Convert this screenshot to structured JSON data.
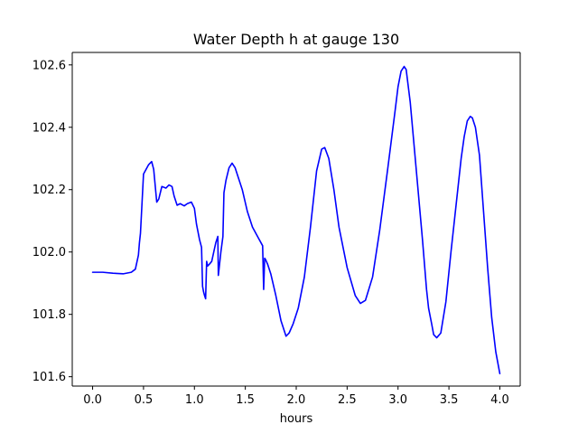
{
  "chart_data": {
    "type": "line",
    "title": "Water Depth h at gauge 130",
    "xlabel": "hours",
    "ylabel": "",
    "xlim": [
      -0.2,
      4.2
    ],
    "ylim": [
      101.57,
      102.64
    ],
    "xticks": [
      0.0,
      0.5,
      1.0,
      1.5,
      2.0,
      2.5,
      3.0,
      3.5,
      4.0
    ],
    "xtick_labels": [
      "0.0",
      "0.5",
      "1.0",
      "1.5",
      "2.0",
      "2.5",
      "3.0",
      "3.5",
      "4.0"
    ],
    "yticks": [
      101.6,
      101.8,
      102.0,
      102.2,
      102.4,
      102.6
    ],
    "ytick_labels": [
      "101.6",
      "101.8",
      "102.0",
      "102.2",
      "102.4",
      "102.6"
    ],
    "grid": false,
    "series": [
      {
        "color": "#0000ff",
        "x": [
          0.0,
          0.1,
          0.2,
          0.3,
          0.38,
          0.42,
          0.45,
          0.46,
          0.47,
          0.5,
          0.55,
          0.58,
          0.6,
          0.63,
          0.65,
          0.68,
          0.72,
          0.75,
          0.78,
          0.8,
          0.83,
          0.86,
          0.9,
          0.93,
          0.97,
          1.0,
          1.02,
          1.05,
          1.07,
          1.08,
          1.09,
          1.1,
          1.11,
          1.12,
          1.13,
          1.15,
          1.17,
          1.19,
          1.21,
          1.23,
          1.235,
          1.24,
          1.26,
          1.28,
          1.29,
          1.31,
          1.34,
          1.37,
          1.4,
          1.43,
          1.47,
          1.52,
          1.57,
          1.62,
          1.67,
          1.68,
          1.69,
          1.7,
          1.72,
          1.75,
          1.8,
          1.85,
          1.9,
          1.93,
          1.97,
          2.02,
          2.08,
          2.14,
          2.2,
          2.25,
          2.28,
          2.32,
          2.37,
          2.42,
          2.5,
          2.58,
          2.63,
          2.68,
          2.75,
          2.82,
          2.9,
          2.97,
          3.0,
          3.03,
          3.06,
          3.08,
          3.12,
          3.18,
          3.24,
          3.28,
          3.3,
          3.33,
          3.35,
          3.38,
          3.42,
          3.47,
          3.52,
          3.57,
          3.62,
          3.65,
          3.68,
          3.71,
          3.73,
          3.76,
          3.8,
          3.84,
          3.88,
          3.92,
          3.96,
          4.0
        ],
        "y": [
          101.935,
          101.935,
          101.932,
          101.93,
          101.935,
          101.945,
          101.99,
          102.03,
          102.06,
          102.25,
          102.28,
          102.29,
          102.265,
          102.16,
          102.17,
          102.21,
          102.205,
          102.215,
          102.21,
          102.18,
          102.15,
          102.155,
          102.148,
          102.155,
          102.16,
          102.14,
          102.09,
          102.04,
          102.015,
          101.89,
          101.872,
          101.86,
          101.85,
          101.97,
          101.955,
          101.962,
          101.97,
          102.0,
          102.03,
          102.05,
          101.925,
          101.94,
          102.0,
          102.05,
          102.19,
          102.23,
          102.27,
          102.285,
          102.27,
          102.24,
          102.2,
          102.13,
          102.08,
          102.05,
          102.02,
          101.88,
          101.98,
          101.975,
          101.96,
          101.93,
          101.86,
          101.78,
          101.73,
          101.74,
          101.77,
          101.82,
          101.92,
          102.08,
          102.26,
          102.33,
          102.335,
          102.3,
          102.2,
          102.08,
          101.95,
          101.86,
          101.835,
          101.845,
          101.92,
          102.07,
          102.27,
          102.45,
          102.53,
          102.58,
          102.595,
          102.585,
          102.48,
          102.26,
          102.04,
          101.88,
          101.82,
          101.77,
          101.735,
          101.725,
          101.74,
          101.84,
          102.0,
          102.15,
          102.3,
          102.37,
          102.42,
          102.435,
          102.43,
          102.4,
          102.31,
          102.13,
          101.95,
          101.79,
          101.68,
          101.61
        ]
      }
    ]
  }
}
